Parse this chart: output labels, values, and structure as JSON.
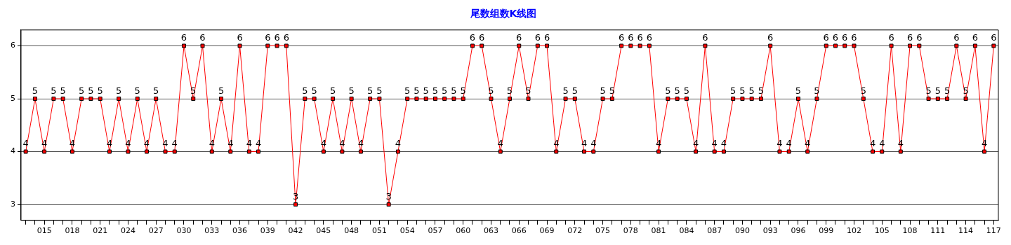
{
  "chart_data": {
    "type": "line",
    "title": "尾数组数K线图",
    "categories": [
      null,
      null,
      "015",
      null,
      null,
      "018",
      null,
      null,
      "021",
      null,
      null,
      "024",
      null,
      null,
      "027",
      null,
      null,
      "030",
      null,
      null,
      "033",
      null,
      null,
      "036",
      null,
      null,
      "039",
      null,
      null,
      "042",
      null,
      null,
      "045",
      null,
      null,
      "048",
      null,
      null,
      "051",
      null,
      null,
      "054",
      null,
      null,
      "057",
      null,
      null,
      "060",
      null,
      null,
      "063",
      null,
      null,
      "066",
      null,
      null,
      "069",
      null,
      null,
      "072",
      null,
      null,
      "075",
      null,
      null,
      "078",
      null,
      null,
      "081",
      null,
      null,
      "084",
      null,
      null,
      "087",
      null,
      null,
      "090",
      null,
      null,
      "093",
      null,
      null,
      "096",
      null,
      null,
      "099",
      null,
      null,
      "102",
      null,
      null,
      "105",
      null,
      null,
      "108",
      null,
      null,
      "111",
      null,
      null,
      "114",
      null,
      null,
      "117"
    ],
    "series": [
      {
        "color": "#ff0000",
        "values": [
          4,
          5,
          4,
          5,
          5,
          4,
          5,
          5,
          5,
          4,
          5,
          4,
          5,
          4,
          5,
          4,
          4,
          6,
          5,
          6,
          4,
          5,
          4,
          6,
          4,
          4,
          6,
          6,
          6,
          3,
          5,
          5,
          4,
          5,
          4,
          5,
          4,
          5,
          5,
          3,
          4,
          5,
          5,
          5,
          5,
          5,
          5,
          5,
          6,
          6,
          5,
          4,
          5,
          6,
          5,
          6,
          6,
          4,
          5,
          5,
          4,
          4,
          5,
          5,
          6,
          6,
          6,
          6,
          4,
          5,
          5,
          5,
          4,
          6,
          4,
          4,
          5,
          5,
          5,
          5,
          6,
          4,
          4,
          5,
          4,
          5,
          6,
          6,
          6,
          6,
          5,
          4,
          4,
          6,
          4,
          6,
          6,
          5,
          5,
          5,
          6,
          5,
          6,
          4,
          6
        ]
      }
    ],
    "ylim": [
      2.7,
      6.3
    ],
    "yticks": [
      3,
      4,
      5,
      6
    ],
    "grid": "y",
    "marker": "square",
    "line_style": "solid",
    "data_labels": true,
    "legend": false
  }
}
